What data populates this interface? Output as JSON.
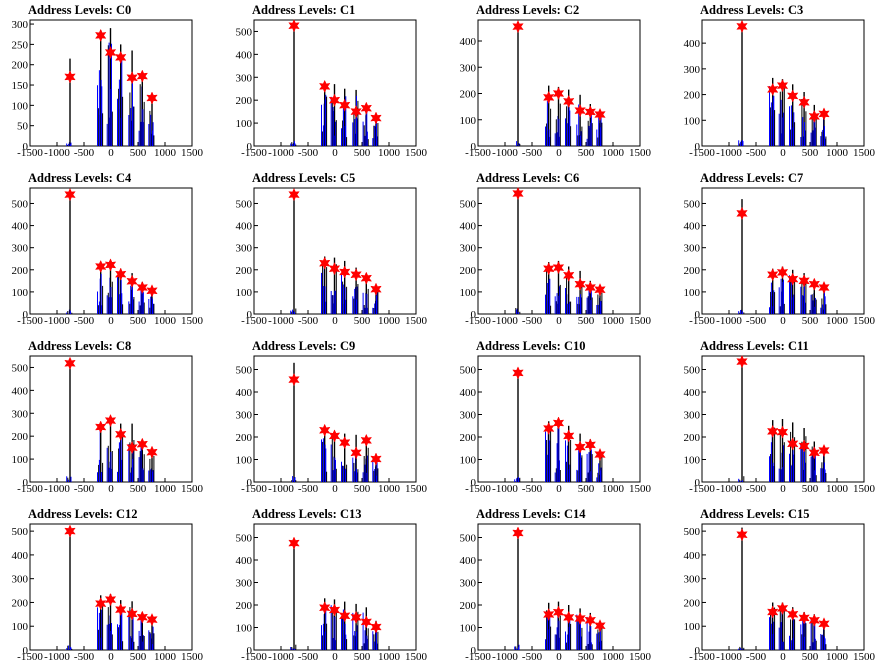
{
  "colors": {
    "histogram": "#0000ff",
    "histogram_dark": "#000000",
    "marker": "#ff0000",
    "frame": "#000000"
  },
  "chart_data": [
    {
      "type": "bar",
      "title": "Address Levels: C0",
      "xlim": [
        -1500,
        1500
      ],
      "ylim": [
        0,
        310
      ],
      "xticks": [
        "-1500",
        "-1000",
        "-500",
        "0",
        "500",
        "1000",
        "1500"
      ],
      "yticks": [
        "0",
        "50",
        "100",
        "150",
        "200",
        "250",
        "300"
      ],
      "peaks": [
        [
          -760,
          215
        ],
        [
          -190,
          285
        ],
        [
          -10,
          290
        ],
        [
          180,
          250
        ],
        [
          390,
          235
        ],
        [
          580,
          180
        ],
        [
          760,
          120
        ]
      ],
      "markers": [
        [
          -760,
          170
        ],
        [
          -190,
          272
        ],
        [
          -10,
          230
        ],
        [
          180,
          218
        ],
        [
          390,
          168
        ],
        [
          580,
          172
        ],
        [
          760,
          118
        ]
      ]
    },
    {
      "type": "bar",
      "title": "Address Levels: C1",
      "xlim": [
        -1500,
        1500
      ],
      "ylim": [
        0,
        550
      ],
      "xticks": [
        "-1500",
        "-1000",
        "-500",
        "0",
        "500",
        "1000",
        "1500"
      ],
      "yticks": [
        "0",
        "100",
        "200",
        "300",
        "400",
        "500"
      ],
      "peaks": [
        [
          -760,
          520
        ],
        [
          -190,
          255
        ],
        [
          -10,
          270
        ],
        [
          180,
          250
        ],
        [
          390,
          245
        ],
        [
          580,
          180
        ],
        [
          760,
          130
        ]
      ],
      "markers": [
        [
          -760,
          525
        ],
        [
          -190,
          260
        ],
        [
          -10,
          200
        ],
        [
          180,
          178
        ],
        [
          390,
          150
        ],
        [
          580,
          165
        ],
        [
          760,
          122
        ]
      ]
    },
    {
      "type": "bar",
      "title": "Address Levels: C2",
      "xlim": [
        -1500,
        1500
      ],
      "ylim": [
        0,
        480
      ],
      "xticks": [
        "-1500",
        "-1000",
        "-500",
        "0",
        "500",
        "1000",
        "1500"
      ],
      "yticks": [
        "0",
        "100",
        "200",
        "300",
        "400"
      ],
      "peaks": [
        [
          -760,
          445
        ],
        [
          -190,
          230
        ],
        [
          -10,
          225
        ],
        [
          180,
          215
        ],
        [
          390,
          195
        ],
        [
          580,
          160
        ],
        [
          760,
          135
        ]
      ],
      "markers": [
        [
          -760,
          455
        ],
        [
          -190,
          185
        ],
        [
          -10,
          200
        ],
        [
          180,
          170
        ],
        [
          390,
          135
        ],
        [
          580,
          130
        ],
        [
          760,
          120
        ]
      ]
    },
    {
      "type": "bar",
      "title": "Address Levels: C3",
      "xlim": [
        -1500,
        1500
      ],
      "ylim": [
        0,
        490
      ],
      "xticks": [
        "-1500",
        "-1000",
        "-500",
        "0",
        "500",
        "1000",
        "1500"
      ],
      "yticks": [
        "0",
        "100",
        "200",
        "300",
        "400"
      ],
      "peaks": [
        [
          -760,
          460
        ],
        [
          -190,
          265
        ],
        [
          -10,
          260
        ],
        [
          180,
          240
        ],
        [
          390,
          210
        ],
        [
          580,
          160
        ],
        [
          760,
          135
        ]
      ],
      "markers": [
        [
          -760,
          465
        ],
        [
          -190,
          220
        ],
        [
          -10,
          235
        ],
        [
          180,
          195
        ],
        [
          390,
          170
        ],
        [
          580,
          115
        ],
        [
          760,
          125
        ]
      ]
    },
    {
      "type": "bar",
      "title": "Address Levels: C4",
      "xlim": [
        -1500,
        1500
      ],
      "ylim": [
        0,
        570
      ],
      "xticks": [
        "-1500",
        "-1000",
        "-500",
        "0",
        "500",
        "1000",
        "1500"
      ],
      "yticks": [
        "0",
        "100",
        "200",
        "300",
        "400",
        "500"
      ],
      "peaks": [
        [
          -760,
          540
        ],
        [
          -190,
          230
        ],
        [
          -10,
          235
        ],
        [
          180,
          205
        ],
        [
          390,
          185
        ],
        [
          580,
          145
        ],
        [
          760,
          115
        ]
      ],
      "markers": [
        [
          -760,
          540
        ],
        [
          -190,
          215
        ],
        [
          -10,
          222
        ],
        [
          180,
          180
        ],
        [
          390,
          148
        ],
        [
          580,
          120
        ],
        [
          760,
          105
        ]
      ]
    },
    {
      "type": "bar",
      "title": "Address Levels: C5",
      "xlim": [
        -1500,
        1500
      ],
      "ylim": [
        0,
        570
      ],
      "xticks": [
        "-1500",
        "-1000",
        "-500",
        "0",
        "500",
        "1000",
        "1500"
      ],
      "yticks": [
        "0",
        "100",
        "200",
        "300",
        "400",
        "500"
      ],
      "peaks": [
        [
          -760,
          535
        ],
        [
          -190,
          260
        ],
        [
          -10,
          255
        ],
        [
          180,
          240
        ],
        [
          390,
          210
        ],
        [
          580,
          185
        ],
        [
          760,
          125
        ]
      ],
      "markers": [
        [
          -760,
          540
        ],
        [
          -190,
          230
        ],
        [
          -10,
          205
        ],
        [
          180,
          190
        ],
        [
          390,
          178
        ],
        [
          580,
          162
        ],
        [
          760,
          112
        ]
      ]
    },
    {
      "type": "bar",
      "title": "Address Levels: C6",
      "xlim": [
        -1500,
        1500
      ],
      "ylim": [
        0,
        570
      ],
      "xticks": [
        "-1500",
        "-1000",
        "-500",
        "0",
        "500",
        "1000",
        "1500"
      ],
      "yticks": [
        "0",
        "100",
        "200",
        "300",
        "400",
        "500"
      ],
      "peaks": [
        [
          -760,
          545
        ],
        [
          -190,
          235
        ],
        [
          -10,
          240
        ],
        [
          180,
          215
        ],
        [
          390,
          195
        ],
        [
          580,
          150
        ],
        [
          760,
          120
        ]
      ],
      "markers": [
        [
          -760,
          545
        ],
        [
          -190,
          205
        ],
        [
          -10,
          210
        ],
        [
          180,
          175
        ],
        [
          390,
          135
        ],
        [
          580,
          120
        ],
        [
          760,
          110
        ]
      ]
    },
    {
      "type": "bar",
      "title": "Address Levels: C7",
      "xlim": [
        -1500,
        1500
      ],
      "ylim": [
        0,
        570
      ],
      "xticks": [
        "-1500",
        "-1000",
        "-500",
        "0",
        "500",
        "1000",
        "1500"
      ],
      "yticks": [
        "0",
        "100",
        "200",
        "300",
        "400",
        "500"
      ],
      "peaks": [
        [
          -760,
          520
        ],
        [
          -190,
          205
        ],
        [
          -10,
          215
        ],
        [
          180,
          200
        ],
        [
          390,
          185
        ],
        [
          580,
          150
        ],
        [
          760,
          130
        ]
      ],
      "markers": [
        [
          -760,
          455
        ],
        [
          -190,
          178
        ],
        [
          -10,
          188
        ],
        [
          180,
          158
        ],
        [
          390,
          150
        ],
        [
          580,
          135
        ],
        [
          760,
          120
        ]
      ]
    },
    {
      "type": "bar",
      "title": "Address Levels: C8",
      "xlim": [
        -1500,
        1500
      ],
      "ylim": [
        0,
        550
      ],
      "xticks": [
        "-1500",
        "-1000",
        "-500",
        "0",
        "500",
        "1000",
        "1500"
      ],
      "yticks": [
        "0",
        "100",
        "200",
        "300",
        "400",
        "500"
      ],
      "peaks": [
        [
          -760,
          520
        ],
        [
          -190,
          260
        ],
        [
          -10,
          260
        ],
        [
          180,
          255
        ],
        [
          390,
          255
        ],
        [
          580,
          185
        ],
        [
          760,
          135
        ]
      ],
      "markers": [
        [
          -760,
          518
        ],
        [
          -190,
          240
        ],
        [
          -10,
          268
        ],
        [
          180,
          208
        ],
        [
          390,
          150
        ],
        [
          580,
          165
        ],
        [
          760,
          130
        ]
      ]
    },
    {
      "type": "bar",
      "title": "Address Levels: C9",
      "xlim": [
        -1500,
        1500
      ],
      "ylim": [
        0,
        560
      ],
      "xticks": [
        "-1500",
        "-1000",
        "-500",
        "0",
        "500",
        "1000",
        "1500"
      ],
      "yticks": [
        "0",
        "100",
        "200",
        "300",
        "400",
        "500"
      ],
      "peaks": [
        [
          -760,
          530
        ],
        [
          -190,
          250
        ],
        [
          -10,
          225
        ],
        [
          180,
          215
        ],
        [
          390,
          210
        ],
        [
          580,
          195
        ],
        [
          760,
          110
        ]
      ],
      "markers": [
        [
          -760,
          455
        ],
        [
          -190,
          230
        ],
        [
          -10,
          205
        ],
        [
          180,
          175
        ],
        [
          390,
          130
        ],
        [
          580,
          185
        ],
        [
          760,
          102
        ]
      ]
    },
    {
      "type": "bar",
      "title": "Address Levels: C10",
      "xlim": [
        -1500,
        1500
      ],
      "ylim": [
        0,
        560
      ],
      "xticks": [
        "-1500",
        "-1000",
        "-500",
        "0",
        "500",
        "1000",
        "1500"
      ],
      "yticks": [
        "0",
        "100",
        "200",
        "300",
        "400",
        "500"
      ],
      "peaks": [
        [
          -760,
          500
        ],
        [
          -190,
          270
        ],
        [
          -10,
          275
        ],
        [
          180,
          250
        ],
        [
          390,
          215
        ],
        [
          580,
          190
        ],
        [
          760,
          135
        ]
      ],
      "markers": [
        [
          -760,
          485
        ],
        [
          -190,
          238
        ],
        [
          -10,
          262
        ],
        [
          180,
          205
        ],
        [
          390,
          155
        ],
        [
          580,
          165
        ],
        [
          760,
          122
        ]
      ]
    },
    {
      "type": "bar",
      "title": "Address Levels: C11",
      "xlim": [
        -1500,
        1500
      ],
      "ylim": [
        0,
        560
      ],
      "xticks": [
        "-1500",
        "-1000",
        "-500",
        "0",
        "500",
        "1000",
        "1500"
      ],
      "yticks": [
        "0",
        "100",
        "200",
        "300",
        "400",
        "500"
      ],
      "peaks": [
        [
          -760,
          550
        ],
        [
          -190,
          275
        ],
        [
          -10,
          280
        ],
        [
          180,
          265
        ],
        [
          390,
          240
        ],
        [
          580,
          180
        ],
        [
          760,
          150
        ]
      ],
      "markers": [
        [
          -760,
          535
        ],
        [
          -190,
          225
        ],
        [
          -10,
          222
        ],
        [
          180,
          170
        ],
        [
          390,
          160
        ],
        [
          580,
          130
        ],
        [
          760,
          140
        ]
      ]
    },
    {
      "type": "bar",
      "title": "Address Levels: C12",
      "xlim": [
        -1500,
        1500
      ],
      "ylim": [
        0,
        530
      ],
      "xticks": [
        "-1500",
        "-1000",
        "-500",
        "0",
        "500",
        "1000",
        "1500"
      ],
      "yticks": [
        "0",
        "100",
        "200",
        "300",
        "400",
        "500"
      ],
      "peaks": [
        [
          -760,
          510
        ],
        [
          -190,
          230
        ],
        [
          -10,
          235
        ],
        [
          180,
          210
        ],
        [
          390,
          205
        ],
        [
          580,
          160
        ],
        [
          760,
          135
        ]
      ],
      "markers": [
        [
          -760,
          500
        ],
        [
          -190,
          195
        ],
        [
          -10,
          212
        ],
        [
          180,
          170
        ],
        [
          390,
          152
        ],
        [
          580,
          138
        ],
        [
          760,
          128
        ]
      ]
    },
    {
      "type": "bar",
      "title": "Address Levels: C13",
      "xlim": [
        -1500,
        1500
      ],
      "ylim": [
        0,
        560
      ],
      "xticks": [
        "-1500",
        "-1000",
        "-500",
        "0",
        "500",
        "1000",
        "1500"
      ],
      "yticks": [
        "0",
        "100",
        "200",
        "300",
        "400",
        "500"
      ],
      "peaks": [
        [
          -760,
          495
        ],
        [
          -190,
          230
        ],
        [
          -10,
          225
        ],
        [
          180,
          215
        ],
        [
          390,
          205
        ],
        [
          580,
          190
        ],
        [
          760,
          130
        ]
      ],
      "markers": [
        [
          -760,
          475
        ],
        [
          -190,
          188
        ],
        [
          -10,
          178
        ],
        [
          180,
          152
        ],
        [
          390,
          145
        ],
        [
          580,
          125
        ],
        [
          760,
          102
        ]
      ]
    },
    {
      "type": "bar",
      "title": "Address Levels: C14",
      "xlim": [
        -1500,
        1500
      ],
      "ylim": [
        0,
        560
      ],
      "xticks": [
        "-1500",
        "-1000",
        "-500",
        "0",
        "500",
        "1000",
        "1500"
      ],
      "yticks": [
        "0",
        "100",
        "200",
        "300",
        "400",
        "500"
      ],
      "peaks": [
        [
          -760,
          525
        ],
        [
          -190,
          210
        ],
        [
          -10,
          215
        ],
        [
          180,
          200
        ],
        [
          390,
          185
        ],
        [
          580,
          165
        ],
        [
          760,
          125
        ]
      ],
      "markers": [
        [
          -760,
          520
        ],
        [
          -190,
          158
        ],
        [
          -10,
          168
        ],
        [
          180,
          145
        ],
        [
          390,
          140
        ],
        [
          580,
          132
        ],
        [
          760,
          108
        ]
      ]
    },
    {
      "type": "bar",
      "title": "Address Levels: C15",
      "xlim": [
        -1500,
        1500
      ],
      "ylim": [
        0,
        530
      ],
      "xticks": [
        "-1500",
        "-1000",
        "-500",
        "0",
        "500",
        "1000",
        "1500"
      ],
      "yticks": [
        "0",
        "100",
        "200",
        "300",
        "400",
        "500"
      ],
      "peaks": [
        [
          -760,
          515
        ],
        [
          -190,
          200
        ],
        [
          -10,
          200
        ],
        [
          180,
          180
        ],
        [
          390,
          160
        ],
        [
          580,
          150
        ],
        [
          760,
          115
        ]
      ],
      "markers": [
        [
          -760,
          485
        ],
        [
          -190,
          160
        ],
        [
          -10,
          175
        ],
        [
          180,
          150
        ],
        [
          390,
          135
        ],
        [
          580,
          125
        ],
        [
          760,
          110
        ]
      ]
    }
  ]
}
